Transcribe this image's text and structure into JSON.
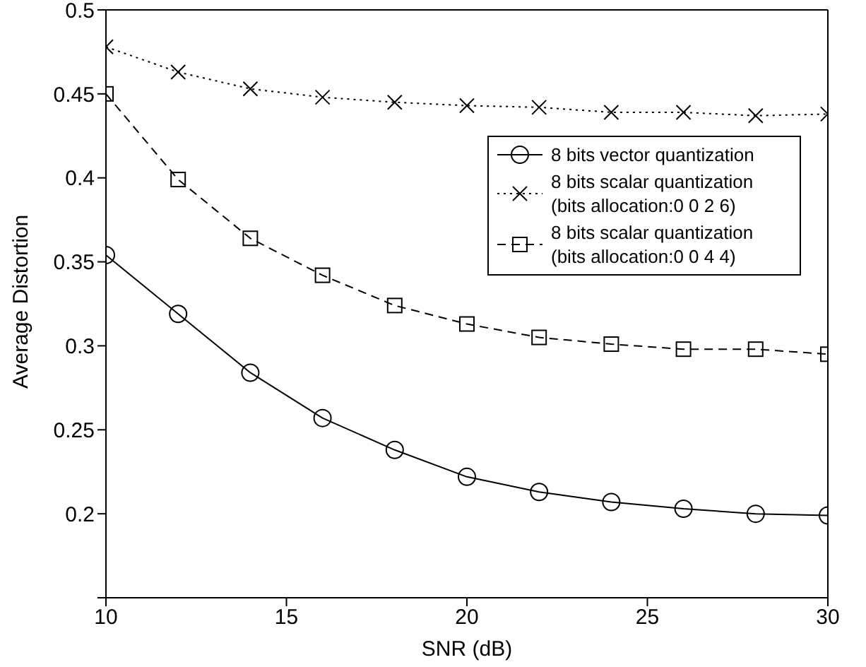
{
  "chart_data": {
    "type": "line",
    "xlabel": "SNR (dB)",
    "ylabel": "Average Distortion",
    "x": [
      10,
      12,
      14,
      16,
      18,
      20,
      22,
      24,
      26,
      28,
      30
    ],
    "xlim": [
      10,
      30
    ],
    "xticks": [
      10,
      15,
      20,
      25,
      30
    ],
    "ylim": [
      0.15,
      0.5
    ],
    "yticks": [
      {
        "value": 0.15,
        "label": null
      },
      0.2,
      0.25,
      0.3,
      0.35,
      0.4,
      0.45,
      0.5
    ],
    "legend": "top right",
    "series": [
      {
        "name": "8 bits vector quantization",
        "color": "#000000",
        "marker": "circle",
        "line_style": "solid",
        "values": [
          0.354,
          0.319,
          0.284,
          0.257,
          0.238,
          0.222,
          0.213,
          0.207,
          0.203,
          0.2,
          0.199
        ]
      },
      {
        "name": "8 bits scalar quantization\n(bits allocation:0 0 2 6)",
        "color": "#000000",
        "marker": "cross",
        "line_style": "dotted",
        "values": [
          0.478,
          0.463,
          0.453,
          0.448,
          0.445,
          0.443,
          0.442,
          0.439,
          0.439,
          0.437,
          0.438
        ]
      },
      {
        "name": "8 bits scalar quantization\n(bits allocation:0 0 4 4)",
        "color": "#000000",
        "marker": "square",
        "line_style": "dashed",
        "values": [
          0.45,
          0.399,
          0.364,
          0.342,
          0.324,
          0.313,
          0.305,
          0.301,
          0.298,
          0.298,
          0.295
        ]
      }
    ]
  }
}
